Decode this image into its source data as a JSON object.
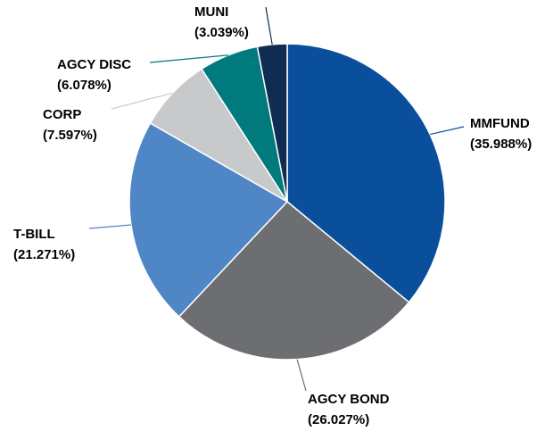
{
  "chart_data": {
    "type": "pie",
    "categories": [
      "MMFUND",
      "AGCY BOND",
      "T-BILL",
      "CORP",
      "AGCY DISC",
      "MUNI"
    ],
    "values": [
      35.988,
      26.027,
      21.271,
      7.597,
      6.078,
      3.039
    ],
    "value_labels": [
      "(35.988%)",
      "(26.027%)",
      "(21.271%)",
      "(7.597%)",
      "(6.078%)",
      "(3.039%)"
    ],
    "colors": [
      "#0a4f9c",
      "#6d6e71",
      "#4f86c6",
      "#c8c9cb",
      "#007a7d",
      "#0f2d52"
    ]
  }
}
